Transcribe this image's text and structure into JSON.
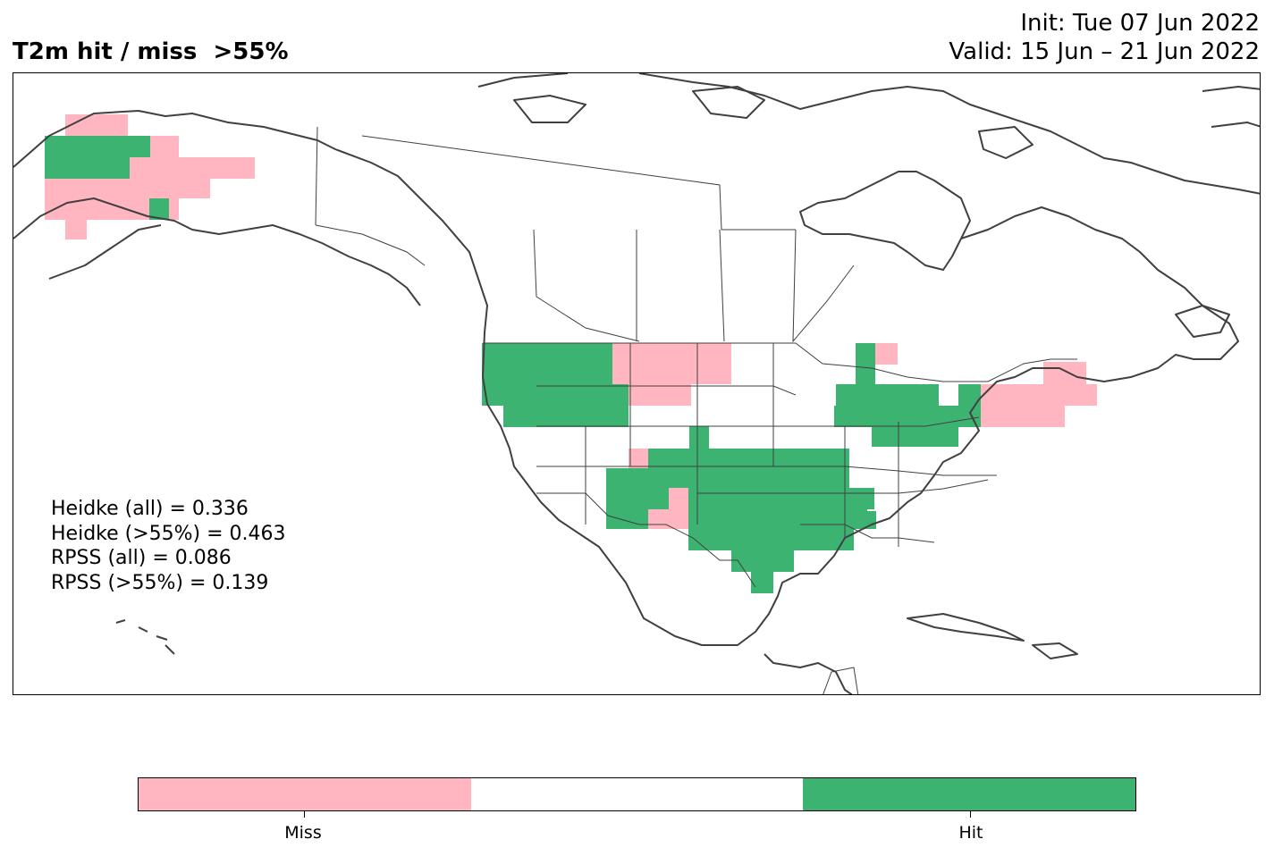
{
  "header": {
    "title": "T2m hit / miss  >55%",
    "init": "Init: Tue 07 Jun 2022",
    "valid": "Valid: 15 Jun – 21 Jun 2022"
  },
  "stats": {
    "heidke_all": "Heidke (all) = 0.336",
    "heidke_55": "Heidke (>55%) = 0.463",
    "rpss_all": "RPSS (all) = 0.086",
    "rpss_55": "RPSS (>55%) = 0.139"
  },
  "colorbar": {
    "colors": [
      "#ffb6c1",
      "#ffffff",
      "#3cb371"
    ],
    "miss_label": "Miss",
    "hit_label": "Hit"
  },
  "colors": {
    "miss": "#ffb6c1",
    "hit": "#3cb371",
    "coast": "#404040",
    "border": "#404040"
  },
  "map": {
    "projection": "north-america",
    "regions": [
      {
        "name": "Alaska",
        "outcome": "mixed"
      },
      {
        "name": "Pacific Northwest",
        "outcome": "hit"
      },
      {
        "name": "Montana",
        "outcome": "miss"
      },
      {
        "name": "Southern Plains",
        "outcome": "hit"
      },
      {
        "name": "Great Lakes",
        "outcome": "hit"
      },
      {
        "name": "New England",
        "outcome": "miss"
      },
      {
        "name": "Southeast",
        "outcome": "hit"
      }
    ]
  }
}
